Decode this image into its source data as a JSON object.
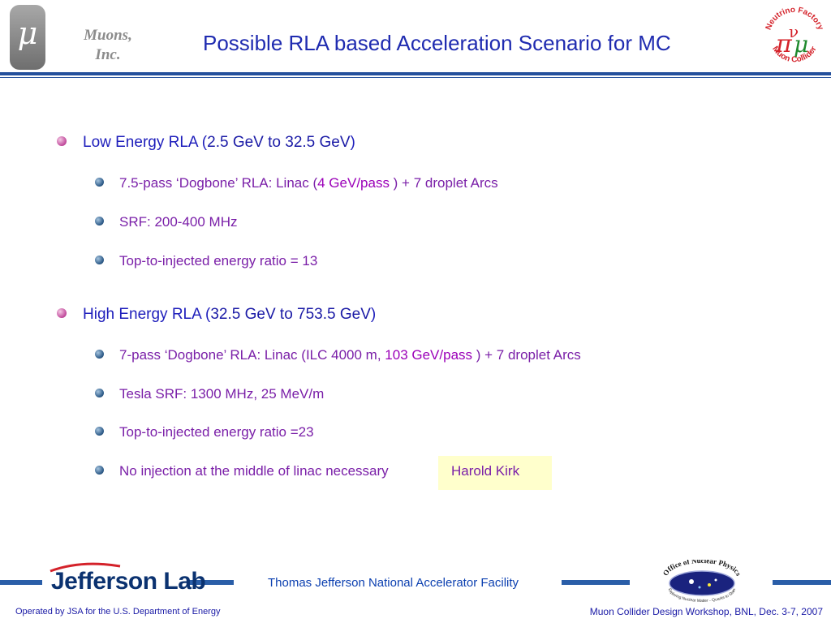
{
  "header": {
    "mu_symbol": "μ",
    "company_line1": "Muons,",
    "company_line2": "Inc.",
    "title": "Possible RLA based Acceleration Scenario for MC",
    "logo_right_top": "Neutrino Factory",
    "logo_right_bottom": "Muon Collider"
  },
  "sections": [
    {
      "heading": "Low Energy RLA",
      "heading_open": " (",
      "heading_range": "2.5 GeV to 32.5 GeV",
      "heading_close": ")",
      "items": [
        {
          "pre": "7.5-pass ‘Dogbone’ RLA: Linac (",
          "highlight": "4 GeV/pass",
          "post": " ) + 7 droplet Arcs"
        },
        {
          "pre": "SRF: 200-400 MHz"
        },
        {
          "pre": "Top-to-injected energy ratio = 13"
        }
      ]
    },
    {
      "heading": "High Energy RLA",
      "heading_open": " (",
      "heading_range": "32.5 GeV to 753.5 GeV",
      "heading_close": ")",
      "items": [
        {
          "pre": "7-pass ‘Dogbone’ RLA: Linac (ILC 4000 m, ",
          "highlight": "103 GeV/pass",
          "post": " ) + 7 droplet Arcs"
        },
        {
          "pre": "Tesla SRF: 1300 MHz, 25 MeV/m"
        },
        {
          "pre": "Top-to-injected energy ratio =23"
        },
        {
          "pre": "No injection at the middle of linac necessary"
        }
      ]
    }
  ],
  "note": "Harold Kirk",
  "footer": {
    "lab_name": "Jefferson Lab",
    "facility": "Thomas Jefferson National Accelerator Facility",
    "office_logo_top": "Office of Nuclear Physics",
    "office_logo_bottom": "Exploring Nuclear Matter - Quarks to Stars",
    "operated_by": "Operated by JSA for the U.S. Department of Energy",
    "workshop": "Muon Collider Design Workshop, BNL, Dec. 3-7, 2007"
  },
  "colors": {
    "title": "#1f2bb0",
    "level1_text": "#1d1dbb",
    "level2_text": "#7a1fa8",
    "highlight": "#9b00b8",
    "rule": "#24509c",
    "note_bg": "#ffffcc"
  }
}
